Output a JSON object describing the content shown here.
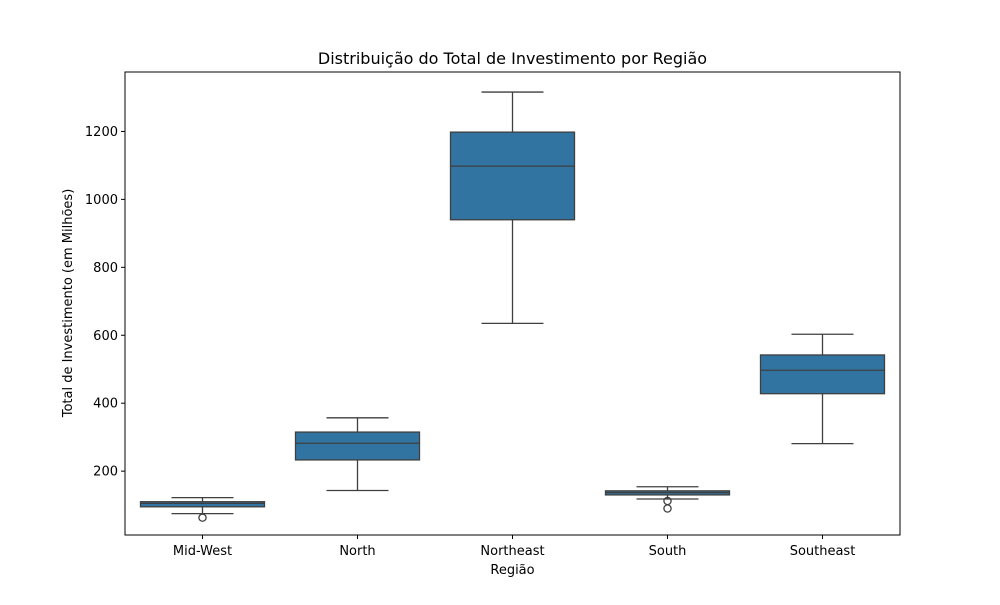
{
  "chart_data": {
    "type": "box",
    "title": "Distribuição do Total de Investimento por Região",
    "xlabel": "Região",
    "ylabel": "Total de Investimento (em Milhões)",
    "categories": [
      "Mid-West",
      "North",
      "Northeast",
      "South",
      "Southeast"
    ],
    "ylim": [
      12,
      1375
    ],
    "yticks": [
      200,
      400,
      600,
      800,
      1000,
      1200
    ],
    "grid": false,
    "legend": "none",
    "box_color": "#3274a1",
    "line_color": "#3f3f3f",
    "boxes": [
      {
        "category": "Mid-West",
        "whisker_low": 75,
        "q1": 95,
        "median": 105,
        "q3": 110,
        "whisker_high": 122,
        "outliers": [
          63
        ]
      },
      {
        "category": "North",
        "whisker_low": 143,
        "q1": 233,
        "median": 282,
        "q3": 315,
        "whisker_high": 357,
        "outliers": []
      },
      {
        "category": "Northeast",
        "whisker_low": 635,
        "q1": 940,
        "median": 1098,
        "q3": 1198,
        "whisker_high": 1316,
        "outliers": []
      },
      {
        "category": "South",
        "whisker_low": 118,
        "q1": 130,
        "median": 137,
        "q3": 142,
        "whisker_high": 154,
        "outliers": [
          90,
          112
        ]
      },
      {
        "category": "Southeast",
        "whisker_low": 281,
        "q1": 428,
        "median": 497,
        "q3": 542,
        "whisker_high": 603,
        "outliers": []
      }
    ]
  }
}
